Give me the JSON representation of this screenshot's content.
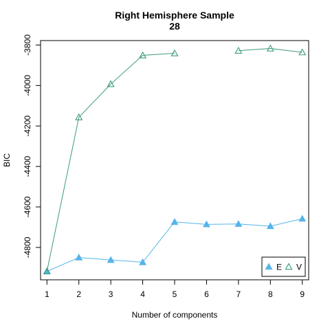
{
  "chart_data": {
    "type": "line",
    "title": "Right Hemisphere Sample",
    "subtitle": "28",
    "xlabel": "Number of components",
    "ylabel": "BIC",
    "x": [
      1,
      2,
      3,
      4,
      5,
      6,
      7,
      8,
      9
    ],
    "xlim": [
      0.8,
      9.2
    ],
    "ylim": [
      -4960,
      -3778
    ],
    "xticks": [
      1,
      2,
      3,
      4,
      5,
      6,
      7,
      8,
      9
    ],
    "yticks": [
      -4800,
      -4600,
      -4400,
      -4200,
      -4000,
      -3800
    ],
    "grid": false,
    "legend_position": "bottom-right",
    "series": [
      {
        "name": "E",
        "marker": "filled-triangle",
        "color": "#56B4E9",
        "values": [
          -4918,
          -4850,
          -4862,
          -4873,
          -4674,
          -4686,
          -4684,
          -4695,
          -4658
        ]
      },
      {
        "name": "V",
        "marker": "open-triangle",
        "color": "#3A9A74",
        "values": [
          -4918,
          -4157,
          -3993,
          -3851,
          -3841,
          null,
          -3828,
          -3817,
          -3836
        ]
      }
    ]
  }
}
